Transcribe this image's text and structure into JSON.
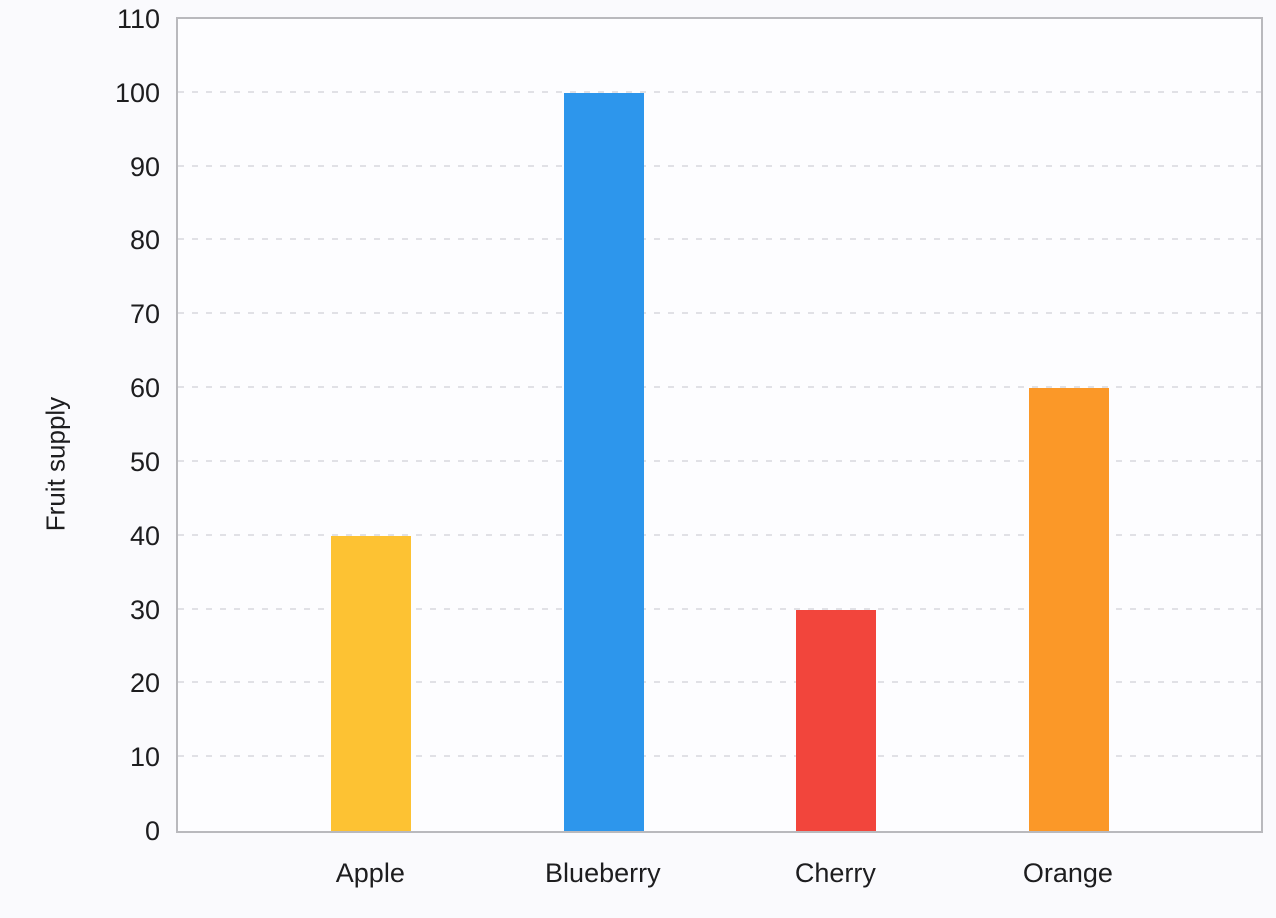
{
  "chart_data": {
    "type": "bar",
    "title": "",
    "xlabel": "",
    "ylabel": "Fruit supply",
    "categories": [
      "Apple",
      "Blueberry",
      "Cherry",
      "Orange"
    ],
    "values": [
      40,
      100,
      30,
      60
    ],
    "bar_colors": [
      "#fdc233",
      "#2d96ec",
      "#f2453c",
      "#fb9828"
    ],
    "ylim": [
      0,
      110
    ],
    "yticks": [
      0,
      10,
      20,
      30,
      40,
      50,
      60,
      70,
      80,
      90,
      100,
      110
    ],
    "grid": "horizontal-dashed",
    "legend": "none"
  },
  "colors": {
    "background": "#fafafd",
    "plot_background": "#fdfdff",
    "grid": "#e1e1e6",
    "axis_border": "#b9b9bd",
    "text": "#1d1d1f"
  }
}
